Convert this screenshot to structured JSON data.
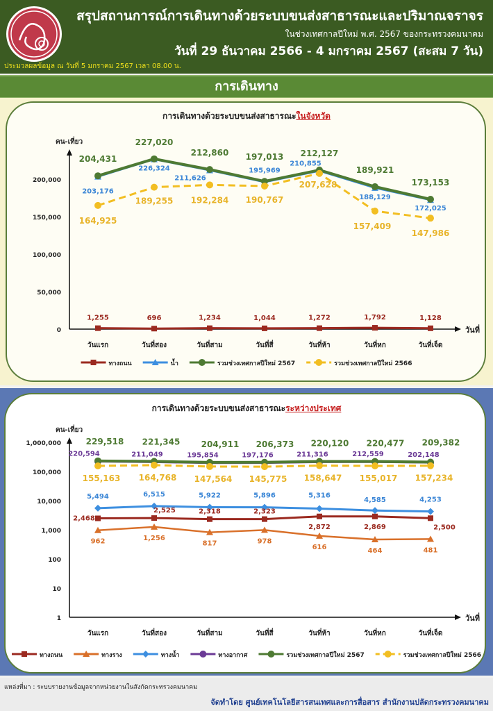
{
  "header": {
    "title": "สรุปสถานการณ์การเดินทางด้วยระบบขนส่งสาธารณะและปริมาณจราจร",
    "subtitle": "ในช่วงเทศกาลปีใหม่ พ.ศ. 2567 ของกระทรวงคมนาคม",
    "date_range": "วันที่ 29 ธันวาคม 2566 - 4 มกราคม 2567 (สะสม 7 วัน)",
    "processed": "ประมวลผลข้อมูล ณ วันที่ 5 มกราคม 2567 เวลา 08.00 น."
  },
  "banner": "การเดินทาง",
  "footer": {
    "source": "แหล่งที่มา : ระบบรายงานข้อมูลจากหน่วยงานในสังกัดกระทรวงคมนาคม",
    "produced_by": "จัดทำโดย ศูนย์เทคโนโลยีสารสนเทศและการสื่อสาร สำนักงานปลัดกระทรวงคมนาคม"
  },
  "chart_data": [
    {
      "type": "line",
      "title": "การเดินทางด้วยระบบขนส่งสาธารณะ",
      "title_highlight": "ในจังหวัด",
      "ylabel": "คน-เที่ยว",
      "xlabel": "วันที่",
      "scale": "linear",
      "ylim": [
        0,
        250000
      ],
      "yticks": [
        "0",
        "50,000",
        "100,000",
        "150,000",
        "200,000"
      ],
      "ytick_values": [
        0,
        50000,
        100000,
        150000,
        200000
      ],
      "categories": [
        "วันแรก",
        "วันที่สอง",
        "วันที่สาม",
        "วันที่สี่",
        "วันที่ห้า",
        "วันที่หก",
        "วันที่เจ็ด"
      ],
      "legend_position": "bottom",
      "series": [
        {
          "name": "ทางถนน",
          "color": "#9b2a20",
          "marker": "square",
          "dashed": false,
          "values": [
            1255,
            696,
            1234,
            1044,
            1272,
            1792,
            1128
          ],
          "labels": [
            "1,255",
            "696",
            "1,234",
            "1,044",
            "1,272",
            "1,792",
            "1,128"
          ]
        },
        {
          "name": "น้ำ",
          "color": "#3d8fe0",
          "marker": "triangle",
          "dashed": false,
          "values": [
            203176,
            226324,
            211626,
            195969,
            210855,
            188129,
            172025
          ],
          "labels": [
            "203,176",
            "226,324",
            "211,626",
            "195,969",
            "210,855",
            "188,129",
            "172,025"
          ]
        },
        {
          "name": "รวมช่วงเทศกาลปีใหม่ 2567",
          "color": "#4e7a33",
          "marker": "circle",
          "dashed": false,
          "values": [
            204431,
            227020,
            212860,
            197013,
            212127,
            189921,
            173153
          ],
          "labels": [
            "204,431",
            "227,020",
            "212,860",
            "197,013",
            "212,127",
            "189,921",
            "173,153"
          ]
        },
        {
          "name": "รวมช่วงเทศกาลปีใหม่ 2566",
          "color": "#f2be22",
          "marker": "circle",
          "dashed": true,
          "values": [
            164925,
            189255,
            192284,
            190767,
            207628,
            157409,
            147986
          ],
          "labels": [
            "164,925",
            "189,255",
            "192,284",
            "190,767",
            "207,628",
            "157,409",
            "147,986"
          ]
        }
      ]
    },
    {
      "type": "line",
      "title": "การเดินทางด้วยระบบขนส่งสาธารณะ",
      "title_highlight": "ระหว่างประเทศ",
      "ylabel": "คน-เที่ยว",
      "xlabel": "วันที่",
      "scale": "log",
      "ylim": [
        1,
        1000000
      ],
      "yticks": [
        "1",
        "10",
        "100",
        "1,000",
        "10,000",
        "100,000",
        "1,000,000"
      ],
      "ytick_values": [
        1,
        10,
        100,
        1000,
        10000,
        100000,
        1000000
      ],
      "categories": [
        "วันแรก",
        "วันที่สอง",
        "วันที่สาม",
        "วันที่สี่",
        "วันที่ห้า",
        "วันที่หก",
        "วันที่เจ็ด"
      ],
      "legend_position": "bottom",
      "series": [
        {
          "name": "ทางถนน",
          "color": "#9b2a20",
          "marker": "square",
          "dashed": false,
          "values": [
            2468,
            2525,
            2318,
            2323,
            2872,
            2869,
            2500
          ],
          "labels": [
            "2,468",
            "2,525",
            "2,318",
            "2,323",
            "2,872",
            "2,869",
            "2,500"
          ]
        },
        {
          "name": "ทางราง",
          "color": "#d9702a",
          "marker": "triangle",
          "dashed": false,
          "values": [
            962,
            1256,
            817,
            978,
            616,
            464,
            481
          ],
          "labels": [
            "962",
            "1,256",
            "817",
            "978",
            "616",
            "464",
            "481"
          ]
        },
        {
          "name": "ทางน้ำ",
          "color": "#3d8fe0",
          "marker": "diamond",
          "dashed": false,
          "values": [
            5494,
            6515,
            5922,
            5896,
            5316,
            4585,
            4253
          ],
          "labels": [
            "5,494",
            "6,515",
            "5,922",
            "5,896",
            "5,316",
            "4,585",
            "4,253"
          ]
        },
        {
          "name": "ทางอากาศ",
          "color": "#6b3a96",
          "marker": "circle",
          "dashed": false,
          "values": [
            220594,
            211049,
            195854,
            197176,
            211316,
            212559,
            202148
          ],
          "labels": [
            "220,594",
            "211,049",
            "195,854",
            "197,176",
            "211,316",
            "212,559",
            "202,148"
          ]
        },
        {
          "name": "รวมช่วงเทศกาลปีใหม่ 2567",
          "color": "#4e7a33",
          "marker": "circle",
          "dashed": false,
          "values": [
            229518,
            221345,
            204911,
            206373,
            220120,
            220477,
            209382
          ],
          "labels": [
            "229,518",
            "221,345",
            "204,911",
            "206,373",
            "220,120",
            "220,477",
            "209,382"
          ]
        },
        {
          "name": "รวมช่วงเทศกาลปีใหม่ 2566",
          "color": "#f2be22",
          "marker": "circle",
          "dashed": true,
          "values": [
            155163,
            164768,
            147564,
            145775,
            158647,
            155017,
            157234
          ],
          "labels": [
            "155,163",
            "164,768",
            "147,564",
            "145,775",
            "158,647",
            "155,017",
            "157,234"
          ]
        }
      ]
    }
  ]
}
